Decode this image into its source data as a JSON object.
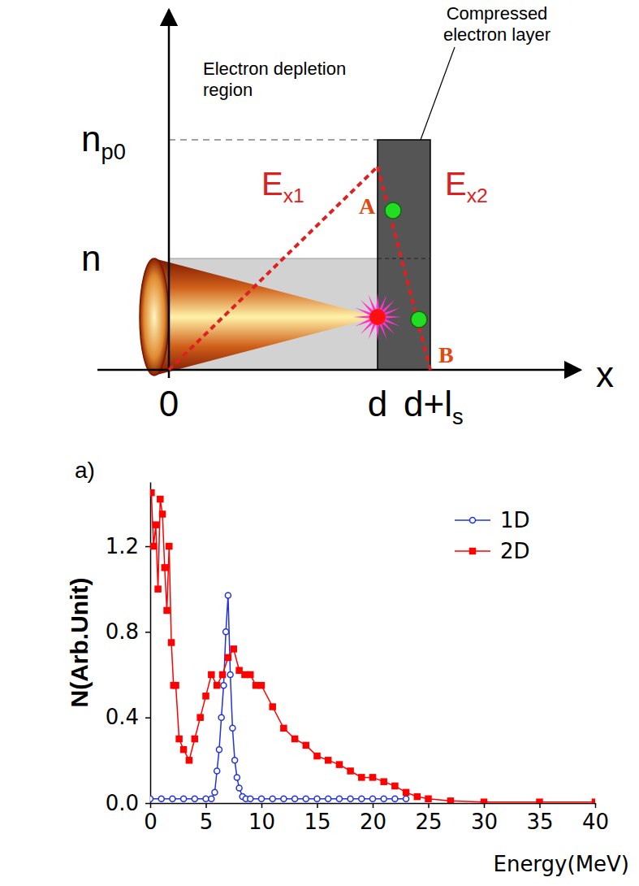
{
  "diagram": {
    "compressed_layer_label": [
      "Compressed",
      "electron layer"
    ],
    "depletion_label": [
      "Electron depletion",
      "region"
    ],
    "density_peak": {
      "text": "n",
      "subscript": "p0"
    },
    "density": {
      "text": "n"
    },
    "field_left": {
      "text": "E",
      "subscript": "x1"
    },
    "field_right": {
      "text": "E",
      "subscript": "x2"
    },
    "x_axis_label": "x",
    "x_marks": [
      {
        "text": "0"
      },
      {
        "text": "d"
      },
      {
        "text": "d+l",
        "subscript": "s"
      }
    ],
    "point_labels": [
      "A",
      "B"
    ]
  },
  "chart_data": {
    "type": "line",
    "panel_label": "a)",
    "x_label": "Energy(MeV)",
    "y_label": "N(Arb.Unit)",
    "xlim": [
      0,
      40
    ],
    "ylim": [
      0,
      1.5
    ],
    "xticks": [
      0,
      5,
      10,
      15,
      20,
      25,
      30,
      35,
      40
    ],
    "yticks": [
      {
        "value": 0,
        "label": "0.0"
      },
      {
        "value": 0.4,
        "label": "0.4"
      },
      {
        "value": 0.8,
        "label": "0.8"
      },
      {
        "value": 1.2,
        "label": "1.2"
      }
    ],
    "legend": "upper right",
    "series": [
      {
        "name": "1D",
        "color": "#2233dd",
        "marker": "circle-open",
        "line_style": "solid",
        "x": [
          0,
          1,
          2,
          3,
          4,
          5,
          5.5,
          5.8,
          6,
          6.2,
          6.4,
          6.6,
          6.8,
          7.0,
          7.2,
          7.4,
          7.6,
          7.8,
          8,
          8.3,
          8.6,
          9,
          10,
          11,
          12,
          13,
          14,
          15,
          16,
          17,
          18,
          19,
          20,
          21,
          22,
          23
        ],
        "values": [
          0.02,
          0.02,
          0.02,
          0.02,
          0.02,
          0.02,
          0.02,
          0.05,
          0.15,
          0.25,
          0.4,
          0.55,
          0.8,
          0.97,
          0.6,
          0.35,
          0.2,
          0.12,
          0.07,
          0.03,
          0.02,
          0.02,
          0.02,
          0.02,
          0.02,
          0.02,
          0.02,
          0.02,
          0.02,
          0.02,
          0.02,
          0.02,
          0.02,
          0.02,
          0.02,
          0.02
        ]
      },
      {
        "name": "2D",
        "color": "#ff0000",
        "marker": "square",
        "line_style": "solid",
        "x": [
          0.1,
          0.3,
          0.5,
          0.7,
          0.9,
          1.1,
          1.3,
          1.5,
          1.7,
          1.9,
          2.1,
          2.3,
          2.6,
          3.0,
          3.5,
          4.0,
          4.5,
          5,
          5.5,
          6,
          6.5,
          7,
          7.5,
          8,
          8.5,
          9,
          9.5,
          10,
          11,
          12,
          13,
          14,
          15,
          16,
          17,
          18,
          19,
          20,
          21,
          22,
          23,
          24,
          25,
          27,
          30,
          35,
          40
        ],
        "values": [
          1.45,
          1.2,
          1.3,
          1.0,
          1.42,
          1.35,
          1.1,
          0.9,
          1.2,
          0.75,
          0.55,
          0.55,
          0.3,
          0.25,
          0.2,
          0.3,
          0.4,
          0.5,
          0.6,
          0.55,
          0.6,
          0.68,
          0.72,
          0.62,
          0.6,
          0.6,
          0.55,
          0.55,
          0.45,
          0.35,
          0.3,
          0.27,
          0.22,
          0.2,
          0.18,
          0.15,
          0.12,
          0.12,
          0.1,
          0.08,
          0.05,
          0.03,
          0.02,
          0.01,
          0.005,
          0.005,
          0.005
        ]
      }
    ]
  }
}
